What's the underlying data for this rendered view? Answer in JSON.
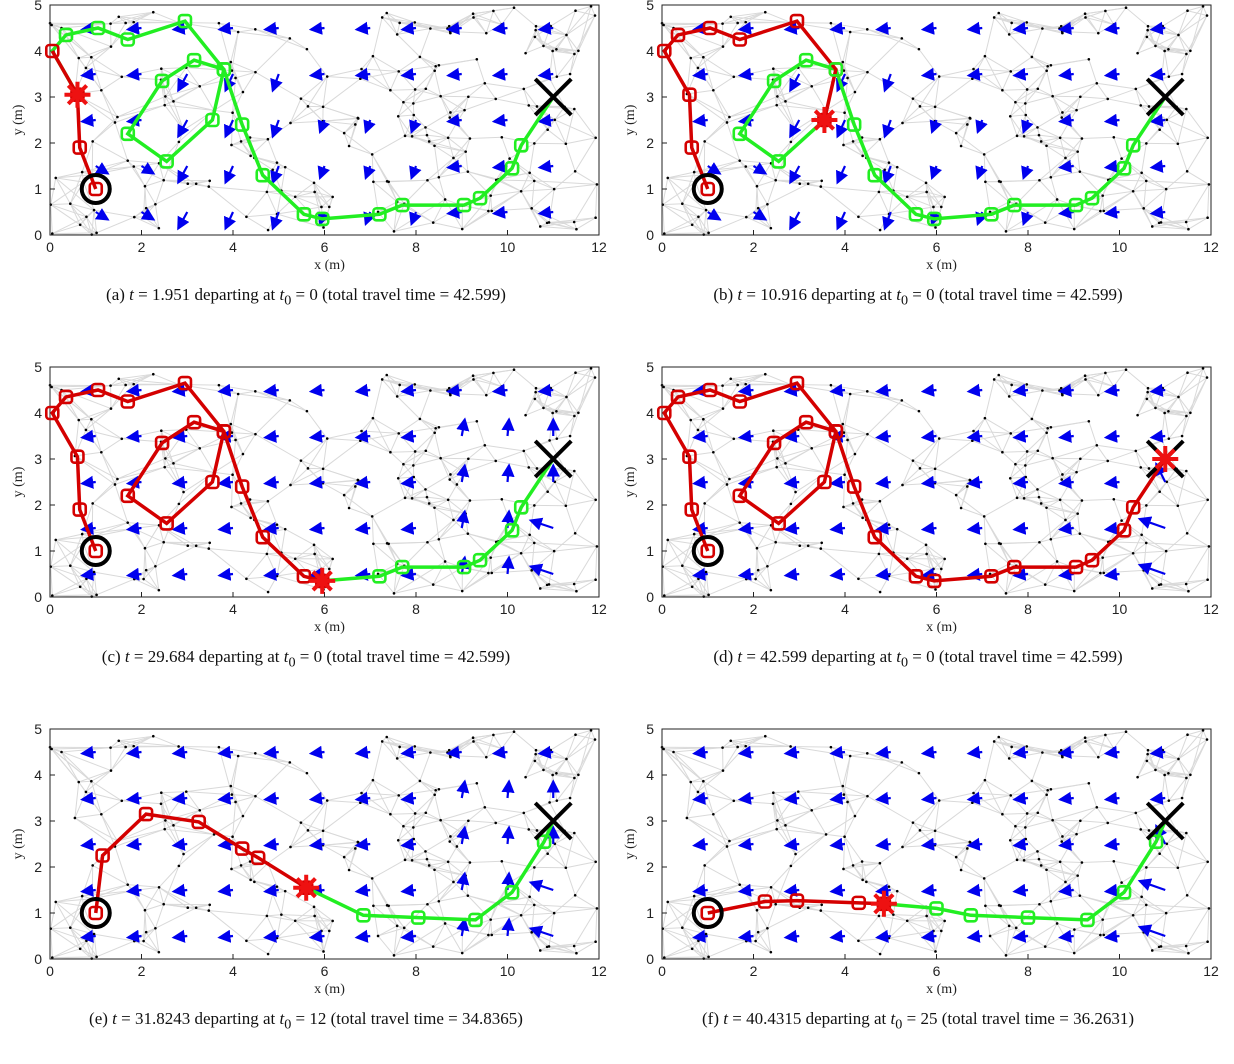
{
  "colors": {
    "graph_edge": "#d9d9d9",
    "graph_node": "#000000",
    "flow_arrow": "#0000ee",
    "traveled_path": "#d40000",
    "remaining_path": "#22ee22",
    "start_marker": "#000000",
    "goal_marker": "#000000",
    "current_marker": "#ee1111"
  },
  "chart_data": [
    {
      "id": "a",
      "type": "line",
      "caption": {
        "label": "(a)",
        "t_value": "1.951",
        "t0_value": "0",
        "total_time": "42.599"
      },
      "xlabel": "x (m)",
      "ylabel": "y (m)",
      "xlim": [
        0,
        12
      ],
      "ylim": [
        0,
        5
      ],
      "xticks": [
        "0",
        "2",
        "4",
        "6",
        "8",
        "10",
        "12"
      ],
      "yticks": [
        "0",
        "1",
        "2",
        "3",
        "4",
        "5"
      ],
      "start": [
        1,
        1
      ],
      "goal": [
        11,
        3
      ],
      "path": [
        [
          1,
          1
        ],
        [
          0.65,
          1.9
        ],
        [
          0.6,
          3.05
        ],
        [
          0.05,
          4.0
        ],
        [
          0.35,
          4.35
        ],
        [
          1.05,
          4.5
        ],
        [
          1.7,
          4.25
        ],
        [
          2.95,
          4.65
        ],
        [
          3.8,
          3.6
        ],
        [
          3.55,
          2.5
        ],
        [
          2.55,
          1.6
        ],
        [
          1.7,
          2.2
        ],
        [
          2.45,
          3.35
        ],
        [
          3.15,
          3.8
        ],
        [
          3.8,
          3.6
        ],
        [
          4.2,
          2.4
        ],
        [
          4.65,
          1.3
        ],
        [
          5.55,
          0.45
        ],
        [
          5.95,
          0.35
        ],
        [
          7.2,
          0.45
        ],
        [
          7.7,
          0.65
        ],
        [
          9.05,
          0.65
        ],
        [
          9.4,
          0.8
        ],
        [
          10.1,
          1.45
        ],
        [
          10.3,
          1.95
        ],
        [
          11,
          3
        ]
      ],
      "traveled_until": 3,
      "current": [
        0.6,
        3.05
      ],
      "flow_variant": "early"
    },
    {
      "id": "b",
      "type": "line",
      "caption": {
        "label": "(b)",
        "t_value": "10.916",
        "t0_value": "0",
        "total_time": "42.599"
      },
      "xlabel": "x (m)",
      "ylabel": "y (m)",
      "xlim": [
        0,
        12
      ],
      "ylim": [
        0,
        5
      ],
      "xticks": [
        "0",
        "2",
        "4",
        "6",
        "8",
        "10",
        "12"
      ],
      "yticks": [
        "0",
        "1",
        "2",
        "3",
        "4",
        "5"
      ],
      "start": [
        1,
        1
      ],
      "goal": [
        11,
        3
      ],
      "path": [
        [
          1,
          1
        ],
        [
          0.65,
          1.9
        ],
        [
          0.6,
          3.05
        ],
        [
          0.05,
          4.0
        ],
        [
          0.35,
          4.35
        ],
        [
          1.05,
          4.5
        ],
        [
          1.7,
          4.25
        ],
        [
          2.95,
          4.65
        ],
        [
          3.8,
          3.6
        ],
        [
          3.55,
          2.5
        ],
        [
          2.55,
          1.6
        ],
        [
          1.7,
          2.2
        ],
        [
          2.45,
          3.35
        ],
        [
          3.15,
          3.8
        ],
        [
          3.8,
          3.6
        ],
        [
          4.2,
          2.4
        ],
        [
          4.65,
          1.3
        ],
        [
          5.55,
          0.45
        ],
        [
          5.95,
          0.35
        ],
        [
          7.2,
          0.45
        ],
        [
          7.7,
          0.65
        ],
        [
          9.05,
          0.65
        ],
        [
          9.4,
          0.8
        ],
        [
          10.1,
          1.45
        ],
        [
          10.3,
          1.95
        ],
        [
          11,
          3
        ]
      ],
      "traveled_until": 9,
      "current": [
        3.55,
        2.5
      ],
      "flow_variant": "early"
    },
    {
      "id": "c",
      "type": "line",
      "caption": {
        "label": "(c)",
        "t_value": "29.684",
        "t0_value": "0",
        "total_time": "42.599"
      },
      "xlabel": "x (m)",
      "ylabel": "y (m)",
      "xlim": [
        0,
        12
      ],
      "ylim": [
        0,
        5
      ],
      "xticks": [
        "0",
        "2",
        "4",
        "6",
        "8",
        "10",
        "12"
      ],
      "yticks": [
        "0",
        "1",
        "2",
        "3",
        "4",
        "5"
      ],
      "start": [
        1,
        1
      ],
      "goal": [
        11,
        3
      ],
      "path": [
        [
          1,
          1
        ],
        [
          0.65,
          1.9
        ],
        [
          0.6,
          3.05
        ],
        [
          0.05,
          4.0
        ],
        [
          0.35,
          4.35
        ],
        [
          1.05,
          4.5
        ],
        [
          1.7,
          4.25
        ],
        [
          2.95,
          4.65
        ],
        [
          3.8,
          3.6
        ],
        [
          3.55,
          2.5
        ],
        [
          2.55,
          1.6
        ],
        [
          1.7,
          2.2
        ],
        [
          2.45,
          3.35
        ],
        [
          3.15,
          3.8
        ],
        [
          3.8,
          3.6
        ],
        [
          4.2,
          2.4
        ],
        [
          4.65,
          1.3
        ],
        [
          5.55,
          0.45
        ],
        [
          5.95,
          0.35
        ],
        [
          7.2,
          0.45
        ],
        [
          7.7,
          0.65
        ],
        [
          9.05,
          0.65
        ],
        [
          9.4,
          0.8
        ],
        [
          10.1,
          1.45
        ],
        [
          10.3,
          1.95
        ],
        [
          11,
          3
        ]
      ],
      "traveled_until": 18,
      "current": [
        5.95,
        0.35
      ],
      "flow_variant": "late"
    },
    {
      "id": "d",
      "type": "line",
      "caption": {
        "label": "(d)",
        "t_value": "42.599",
        "t0_value": "0",
        "total_time": "42.599"
      },
      "xlabel": "x (m)",
      "ylabel": "y (m)",
      "xlim": [
        0,
        12
      ],
      "ylim": [
        0,
        5
      ],
      "xticks": [
        "0",
        "2",
        "4",
        "6",
        "8",
        "10",
        "12"
      ],
      "yticks": [
        "0",
        "1",
        "2",
        "3",
        "4",
        "5"
      ],
      "start": [
        1,
        1
      ],
      "goal": [
        11,
        3
      ],
      "path": [
        [
          1,
          1
        ],
        [
          0.65,
          1.9
        ],
        [
          0.6,
          3.05
        ],
        [
          0.05,
          4.0
        ],
        [
          0.35,
          4.35
        ],
        [
          1.05,
          4.5
        ],
        [
          1.7,
          4.25
        ],
        [
          2.95,
          4.65
        ],
        [
          3.8,
          3.6
        ],
        [
          3.55,
          2.5
        ],
        [
          2.55,
          1.6
        ],
        [
          1.7,
          2.2
        ],
        [
          2.45,
          3.35
        ],
        [
          3.15,
          3.8
        ],
        [
          3.8,
          3.6
        ],
        [
          4.2,
          2.4
        ],
        [
          4.65,
          1.3
        ],
        [
          5.55,
          0.45
        ],
        [
          5.95,
          0.35
        ],
        [
          7.2,
          0.45
        ],
        [
          7.7,
          0.65
        ],
        [
          9.05,
          0.65
        ],
        [
          9.4,
          0.8
        ],
        [
          10.1,
          1.45
        ],
        [
          10.3,
          1.95
        ],
        [
          11,
          3
        ]
      ],
      "traveled_until": 25,
      "current": [
        11,
        3
      ],
      "flow_variant": "final"
    },
    {
      "id": "e",
      "type": "line",
      "caption": {
        "label": "(e)",
        "t_value": "31.8243",
        "t0_value": "12",
        "total_time": "34.8365"
      },
      "xlabel": "x (m)",
      "ylabel": "y (m)",
      "xlim": [
        0,
        12
      ],
      "ylim": [
        0,
        5
      ],
      "xticks": [
        "0",
        "2",
        "4",
        "6",
        "8",
        "10",
        "12"
      ],
      "yticks": [
        "0",
        "1",
        "2",
        "3",
        "4",
        "5"
      ],
      "start": [
        1,
        1
      ],
      "goal": [
        11,
        3
      ],
      "path": [
        [
          1,
          1
        ],
        [
          1.15,
          2.25
        ],
        [
          2.1,
          3.15
        ],
        [
          3.25,
          2.98
        ],
        [
          4.2,
          2.4
        ],
        [
          4.55,
          2.2
        ],
        [
          5.6,
          1.55
        ],
        [
          6.85,
          0.95
        ],
        [
          8.05,
          0.9
        ],
        [
          9.3,
          0.85
        ],
        [
          10.1,
          1.45
        ],
        [
          10.8,
          2.55
        ],
        [
          11,
          3
        ]
      ],
      "traveled_until": 6,
      "current": [
        5.6,
        1.55
      ],
      "flow_variant": "late"
    },
    {
      "id": "f",
      "type": "line",
      "caption": {
        "label": "(f)",
        "t_value": "40.4315",
        "t0_value": "25",
        "total_time": "36.2631"
      },
      "xlabel": "x (m)",
      "ylabel": "y (m)",
      "xlim": [
        0,
        12
      ],
      "ylim": [
        0,
        5
      ],
      "xticks": [
        "0",
        "2",
        "4",
        "6",
        "8",
        "10",
        "12"
      ],
      "yticks": [
        "0",
        "1",
        "2",
        "3",
        "4",
        "5"
      ],
      "start": [
        1,
        1
      ],
      "goal": [
        11,
        3
      ],
      "path": [
        [
          1,
          1
        ],
        [
          2.25,
          1.25
        ],
        [
          2.95,
          1.27
        ],
        [
          4.3,
          1.22
        ],
        [
          4.85,
          1.2
        ],
        [
          6.0,
          1.1
        ],
        [
          6.75,
          0.95
        ],
        [
          8.0,
          0.9
        ],
        [
          9.3,
          0.85
        ],
        [
          10.1,
          1.45
        ],
        [
          10.8,
          2.55
        ],
        [
          11,
          3
        ]
      ],
      "traveled_until": 4,
      "current": [
        4.85,
        1.2
      ],
      "flow_variant": "final"
    }
  ],
  "caption_text": {
    "t_label": "t",
    "equals": " = ",
    "departing": " departing at ",
    "t0_base": "t",
    "t0_sub": "0",
    "total_prefix": " (total travel time = ",
    "total_suffix": ")"
  }
}
